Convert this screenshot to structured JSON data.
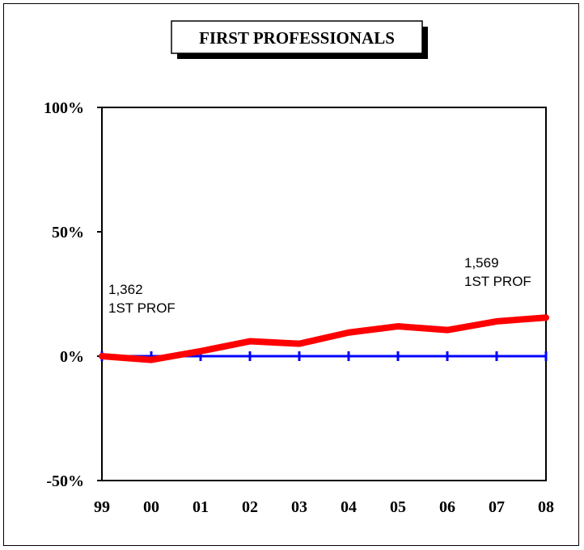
{
  "chart_data": {
    "type": "line",
    "title": "FIRST PROFESSIONALS",
    "xlabel": "",
    "ylabel": "",
    "categories": [
      "99",
      "00",
      "01",
      "02",
      "03",
      "04",
      "05",
      "06",
      "07",
      "08"
    ],
    "yticks": [
      "100%",
      "50%",
      "0%",
      "-50%"
    ],
    "ylim": [
      -50,
      100
    ],
    "grid": false,
    "series": [
      {
        "name": "",
        "values": [
          0,
          -1.5,
          2,
          6,
          5,
          9.5,
          12,
          10.5,
          14,
          15.5
        ]
      }
    ],
    "baseline": 0,
    "annotations": [
      {
        "line1": "1,362",
        "line2": "1ST PROF"
      },
      {
        "line1": "1,569",
        "line2": "1ST PROF"
      }
    ]
  },
  "colors": {
    "series": "#ff0000",
    "baseline": "#0000ff",
    "axis": "#000000"
  }
}
